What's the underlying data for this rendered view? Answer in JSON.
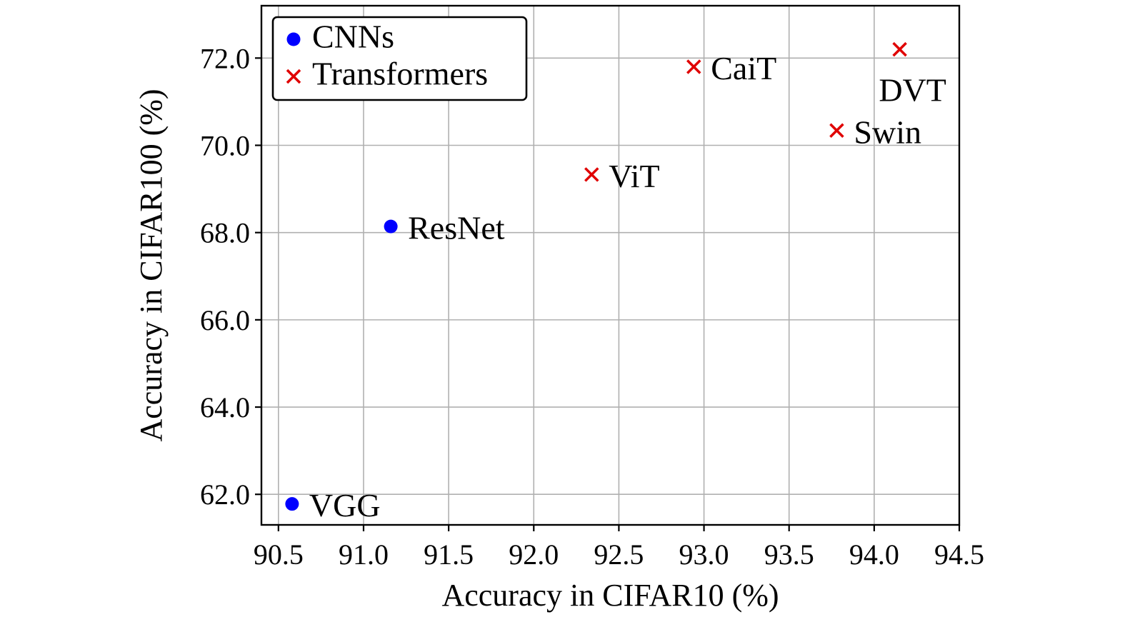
{
  "chart_data": {
    "type": "scatter",
    "title": "",
    "xlabel": "Accuracy in CIFAR10 (%)",
    "ylabel": "Accuracy in CIFAR100 (%)",
    "xlim": [
      90.4,
      94.5
    ],
    "ylim": [
      61.3,
      73.2
    ],
    "xticks": [
      "90.5",
      "91.0",
      "91.5",
      "92.0",
      "92.5",
      "93.0",
      "93.5",
      "94.0",
      "94.5"
    ],
    "yticks": [
      "62.0",
      "64.0",
      "66.0",
      "68.0",
      "70.0",
      "72.0"
    ],
    "grid": true,
    "legend_position": "top-left",
    "series": [
      {
        "name": "CNNs",
        "marker": "circle",
        "color": "#0000ff",
        "points": [
          {
            "label": "VGG",
            "x": 90.58,
            "y": 61.78
          },
          {
            "label": "ResNet",
            "x": 91.16,
            "y": 68.14
          }
        ]
      },
      {
        "name": "Transformers",
        "marker": "x",
        "color": "#e00000",
        "points": [
          {
            "label": "ViT",
            "x": 92.34,
            "y": 69.33
          },
          {
            "label": "CaiT",
            "x": 92.94,
            "y": 71.8
          },
          {
            "label": "Swin",
            "x": 93.78,
            "y": 70.34
          },
          {
            "label": "DVT",
            "x": 94.15,
            "y": 72.2
          }
        ]
      }
    ]
  }
}
